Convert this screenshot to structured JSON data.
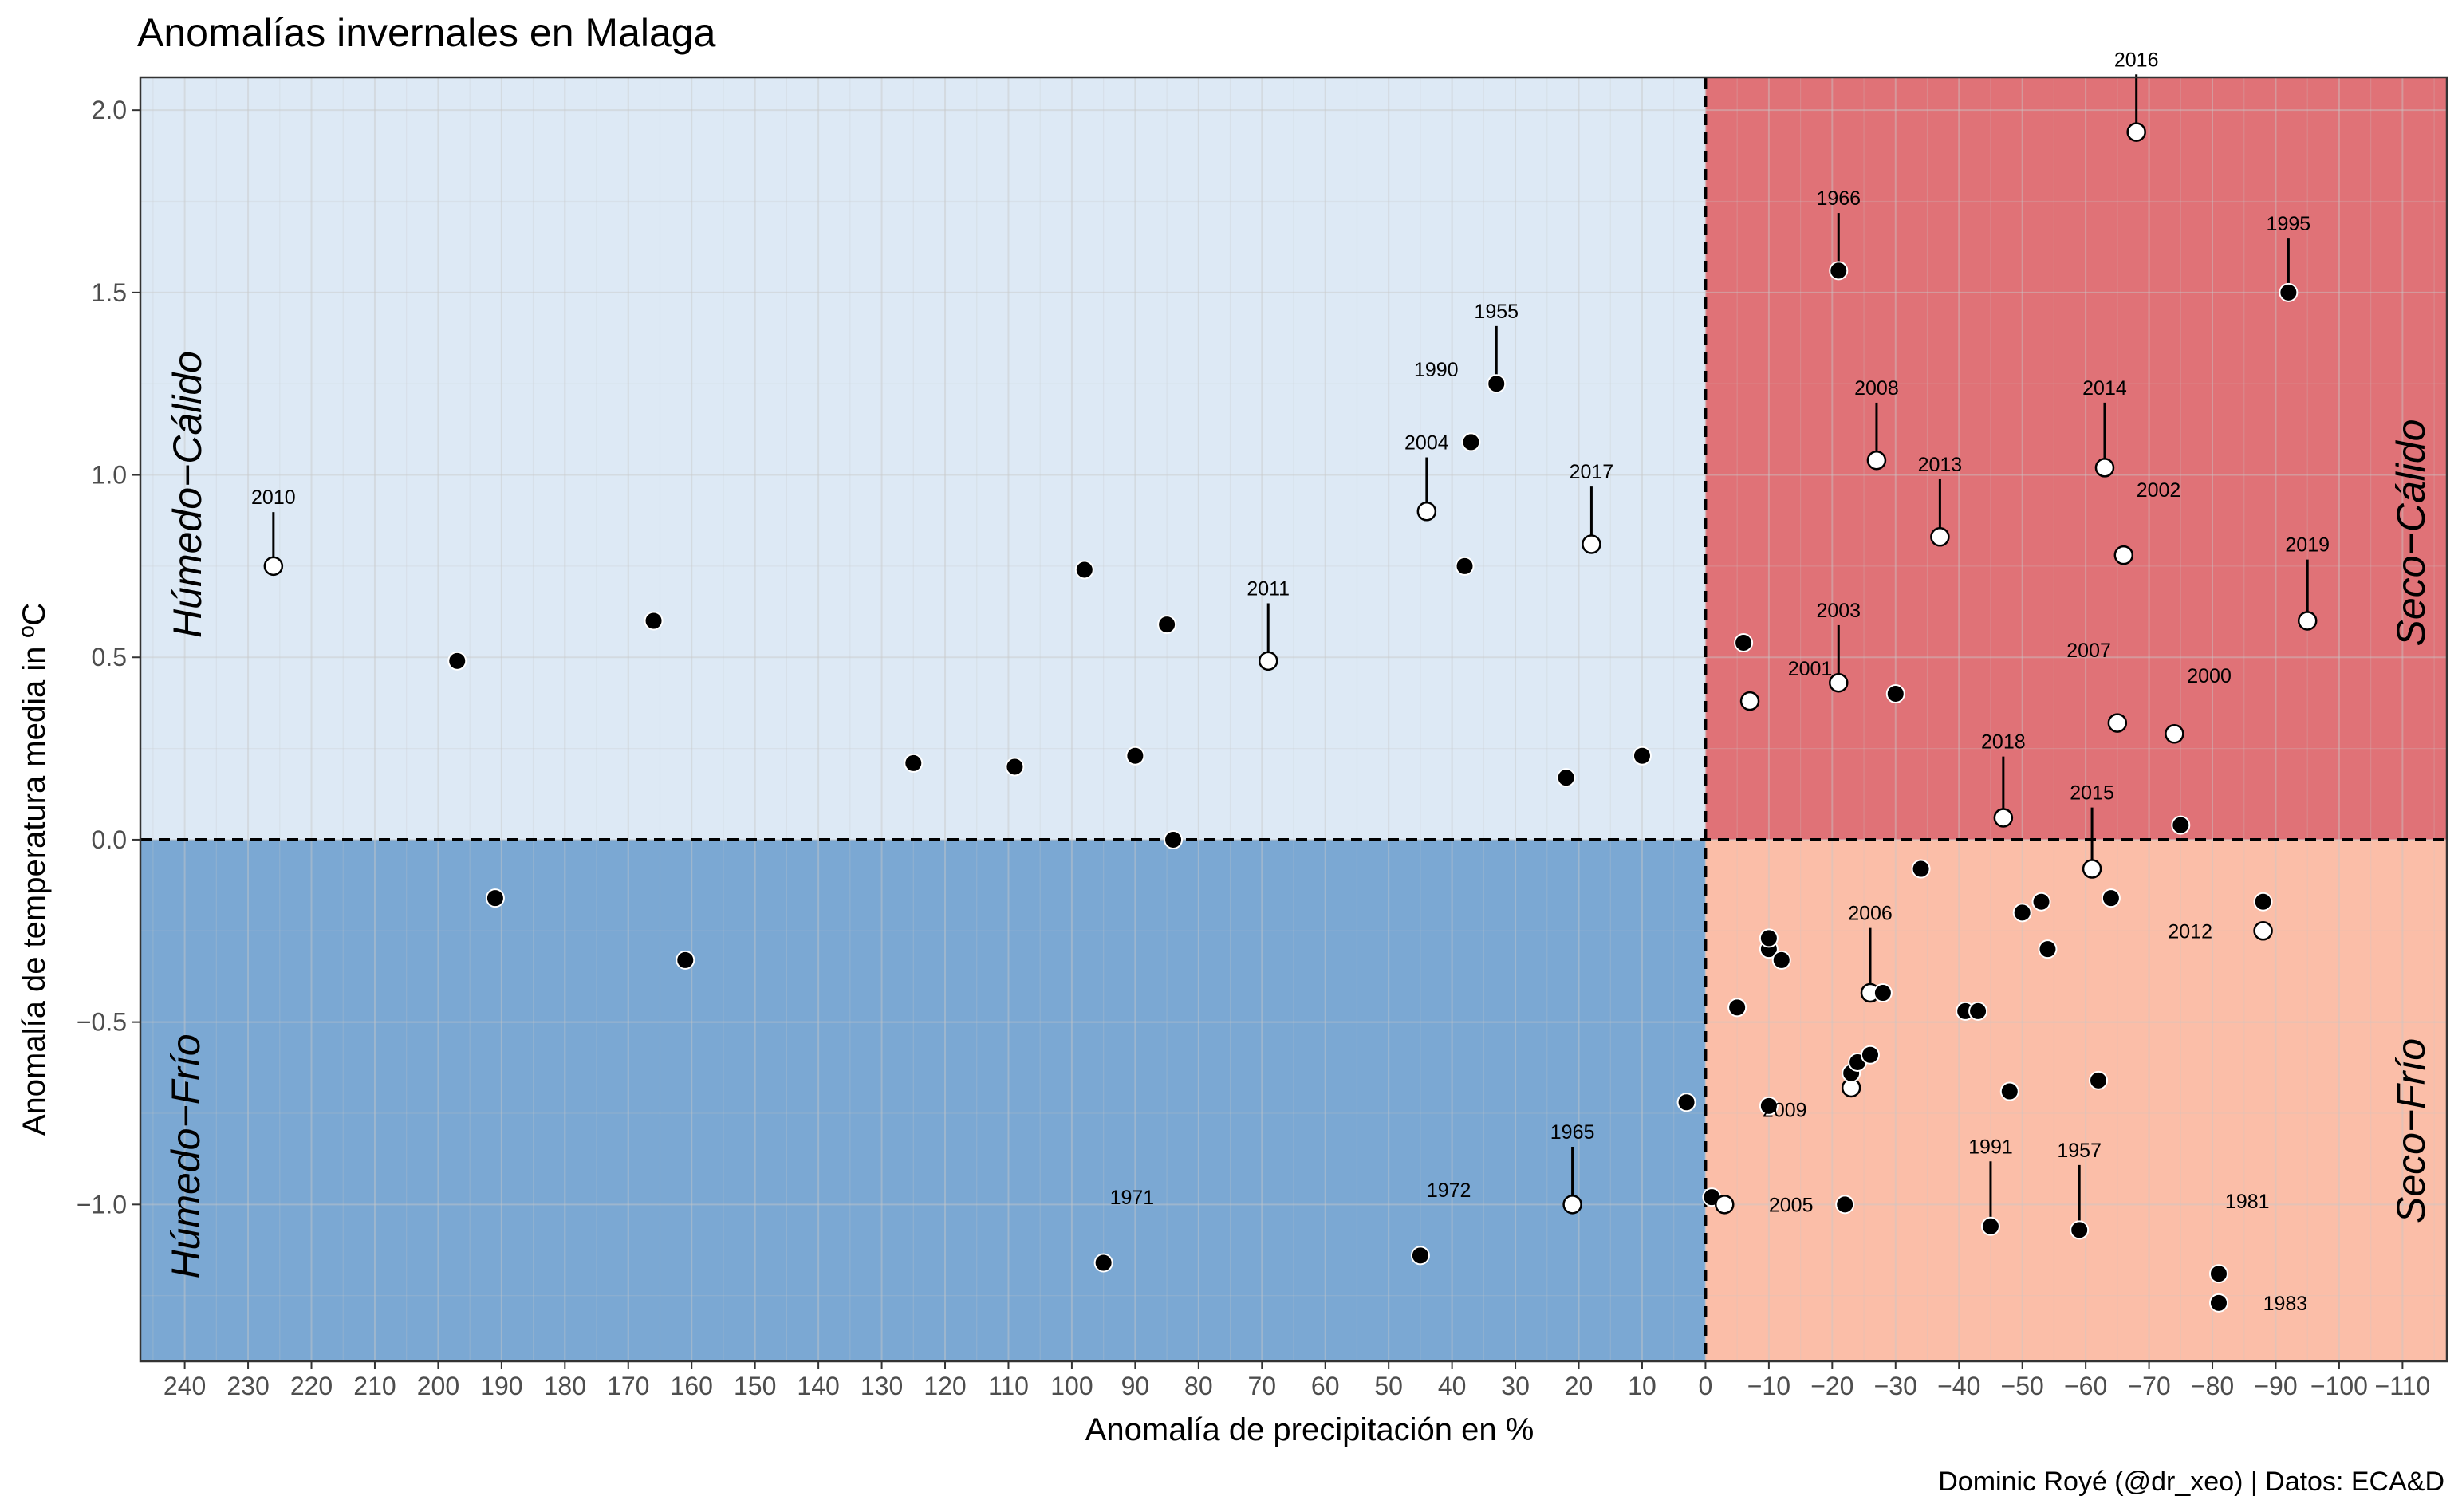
{
  "chart_data": {
    "type": "scatter",
    "title": "Anomalías invernales en Malaga",
    "xlabel": "Anomalía de precipitación en %",
    "ylabel": "Anomalía de temperatura media in ºC",
    "caption": "Dominic Royé (@dr_xeo) | Datos: ECA&D",
    "x_reversed": true,
    "xlim": [
      247,
      -117
    ],
    "ylim": [
      -1.43,
      2.09
    ],
    "x_ticks": [
      240,
      230,
      220,
      210,
      200,
      190,
      180,
      170,
      160,
      150,
      140,
      130,
      120,
      110,
      100,
      90,
      80,
      70,
      60,
      50,
      40,
      30,
      20,
      10,
      0,
      -10,
      -20,
      -30,
      -40,
      -50,
      -60,
      -70,
      -80,
      -90,
      -100,
      -110
    ],
    "x_tick_labels": [
      "240",
      "230",
      "220",
      "210",
      "200",
      "190",
      "180",
      "170",
      "160",
      "150",
      "140",
      "130",
      "120",
      "110",
      "100",
      "90",
      "80",
      "70",
      "60",
      "50",
      "40",
      "30",
      "20",
      "10",
      "0",
      "−10",
      "−20",
      "−30",
      "−40",
      "−50",
      "−60",
      "−70",
      "−80",
      "−90",
      "−100",
      "−110"
    ],
    "y_ticks": [
      2.0,
      1.5,
      1.0,
      0.5,
      0.0,
      -0.5,
      -1.0
    ],
    "y_tick_labels": [
      "2.0",
      "1.5",
      "1.0",
      "0.5",
      "0.0",
      "−0.5",
      "−1.0"
    ],
    "grid": true,
    "quadrants": [
      {
        "label": "Húmedo−Cálido",
        "color": "#dde9f5"
      },
      {
        "label": "Seco−Cálido",
        "color": "#e07277"
      },
      {
        "label": "Húmedo−Frío",
        "color": "#7ba8d3"
      },
      {
        "label": "Seco−Frío",
        "color": "#fbbea8"
      }
    ],
    "points": [
      {
        "x": 226,
        "y": 0.75,
        "label": "2010",
        "open": true,
        "lx": 226,
        "ly": 0.92
      },
      {
        "x": 197,
        "y": 0.49
      },
      {
        "x": 191,
        "y": -0.16
      },
      {
        "x": 166,
        "y": 0.6
      },
      {
        "x": 161,
        "y": -0.33
      },
      {
        "x": 125,
        "y": 0.21
      },
      {
        "x": 109,
        "y": 0.2
      },
      {
        "x": 98,
        "y": 0.74
      },
      {
        "x": 95,
        "y": -1.16,
        "label": "1971",
        "lx": 94,
        "ly": -0.98
      },
      {
        "x": 90,
        "y": 0.23
      },
      {
        "x": 85,
        "y": 0.59
      },
      {
        "x": 84,
        "y": 0.0
      },
      {
        "x": 69,
        "y": 0.49,
        "label": "2011",
        "open": true,
        "lx": 69,
        "ly": 0.67
      },
      {
        "x": 45,
        "y": -1.14,
        "label": "1972",
        "lx": 44,
        "ly": -0.96
      },
      {
        "x": 44,
        "y": 0.9,
        "label": "2004",
        "open": true,
        "lx": 44,
        "ly": 1.07
      },
      {
        "x": 38,
        "y": 0.75
      },
      {
        "x": 37,
        "y": 1.09,
        "label": "1990",
        "lx": 39,
        "ly": 1.29
      },
      {
        "x": 33,
        "y": 1.25,
        "label": "1955",
        "lx": 33,
        "ly": 1.43
      },
      {
        "x": 22,
        "y": 0.17
      },
      {
        "x": 21,
        "y": -1.0,
        "label": "1965",
        "open": true,
        "lx": 21,
        "ly": -0.82
      },
      {
        "x": 18,
        "y": 0.81,
        "label": "2017",
        "open": true,
        "lx": 18,
        "ly": 0.99
      },
      {
        "x": 10,
        "y": 0.23
      },
      {
        "x": 3,
        "y": -0.72
      },
      {
        "x": -1,
        "y": -0.98
      },
      {
        "x": -3,
        "y": -1.0,
        "label": "2005",
        "open": true,
        "lx": -10,
        "ly": -1.0
      },
      {
        "x": -5,
        "y": -0.46
      },
      {
        "x": -6,
        "y": 0.54
      },
      {
        "x": -7,
        "y": 0.38,
        "label": "2001",
        "open": true,
        "lx": -13,
        "ly": 0.47
      },
      {
        "x": -10,
        "y": -0.3
      },
      {
        "x": -10,
        "y": -0.27
      },
      {
        "x": -10,
        "y": -0.73
      },
      {
        "x": -12,
        "y": -0.33
      },
      {
        "x": -21,
        "y": 1.56,
        "label": "1966",
        "lx": -21,
        "ly": 1.74
      },
      {
        "x": -21,
        "y": 0.43,
        "label": "2003",
        "open": true,
        "lx": -21,
        "ly": 0.61
      },
      {
        "x": -22,
        "y": -1.0
      },
      {
        "x": -23,
        "y": -0.68,
        "label": "2009",
        "open": true,
        "lx": -16,
        "ly": -0.74
      },
      {
        "x": -23,
        "y": -0.64
      },
      {
        "x": -24,
        "y": -0.61
      },
      {
        "x": -26,
        "y": -0.42,
        "label": "2006",
        "open": true,
        "lx": -26,
        "ly": -0.22
      },
      {
        "x": -26,
        "y": -0.59
      },
      {
        "x": -27,
        "y": 1.04,
        "label": "2008",
        "open": true,
        "lx": -27,
        "ly": 1.22
      },
      {
        "x": -28,
        "y": -0.42
      },
      {
        "x": -30,
        "y": 0.4
      },
      {
        "x": -34,
        "y": -0.08
      },
      {
        "x": -37,
        "y": 0.83,
        "label": "2013",
        "open": true,
        "lx": -37,
        "ly": 1.01
      },
      {
        "x": -41,
        "y": -0.47
      },
      {
        "x": -43,
        "y": -0.47
      },
      {
        "x": -45,
        "y": -1.06,
        "label": "1991",
        "lx": -45,
        "ly": -0.86
      },
      {
        "x": -47,
        "y": 0.06,
        "label": "2018",
        "open": true,
        "lx": -47,
        "ly": 0.25
      },
      {
        "x": -48,
        "y": -0.69
      },
      {
        "x": -50,
        "y": -0.2
      },
      {
        "x": -53,
        "y": -0.17
      },
      {
        "x": -54,
        "y": -0.3
      },
      {
        "x": -59,
        "y": -1.07,
        "label": "1957",
        "lx": -59,
        "ly": -0.87
      },
      {
        "x": -61,
        "y": -0.08,
        "label": "2015",
        "open": true,
        "lx": -61,
        "ly": 0.11
      },
      {
        "x": -62,
        "y": -0.66
      },
      {
        "x": -63,
        "y": 1.02,
        "label": "2014",
        "open": true,
        "lx": -63,
        "ly": 1.22
      },
      {
        "x": -64,
        "y": -0.16
      },
      {
        "x": -65,
        "y": 0.32,
        "label": "2007",
        "open": true,
        "lx": -64,
        "ly": 0.52
      },
      {
        "x": -66,
        "y": 0.78,
        "label": "2002",
        "open": true,
        "lx": -68,
        "ly": 0.96
      },
      {
        "x": -68,
        "y": 1.94,
        "label": "2016",
        "open": true,
        "lx": -68,
        "ly": 2.12
      },
      {
        "x": -74,
        "y": 0.29,
        "label": "2000",
        "open": true,
        "lx": -76,
        "ly": 0.45
      },
      {
        "x": -75,
        "y": 0.04
      },
      {
        "x": -81,
        "y": -1.19,
        "label": "1981",
        "lx": -82,
        "ly": -0.99
      },
      {
        "x": -81,
        "y": -1.27,
        "label": "1983",
        "lx": -88,
        "ly": -1.27
      },
      {
        "x": -88,
        "y": -0.25,
        "label": "2012",
        "open": true,
        "lx": -80,
        "ly": -0.25
      },
      {
        "x": -88,
        "y": -0.17
      },
      {
        "x": -92,
        "y": 1.5,
        "label": "1995",
        "lx": -92,
        "ly": 1.67
      },
      {
        "x": -95,
        "y": 0.6,
        "label": "2019",
        "open": true,
        "lx": -95,
        "ly": 0.79
      }
    ]
  }
}
